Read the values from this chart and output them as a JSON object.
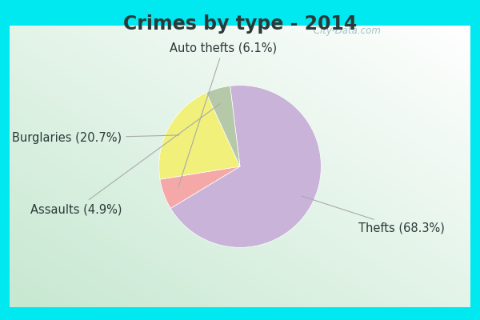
{
  "title": "Crimes by type - 2014",
  "slices": [
    {
      "label": "Thefts (68.3%)",
      "value": 68.3,
      "color": "#c9b3d9"
    },
    {
      "label": "Auto thefts (6.1%)",
      "value": 6.1,
      "color": "#f4a9a8"
    },
    {
      "label": "Burglaries (20.7%)",
      "value": 20.7,
      "color": "#f0f07a"
    },
    {
      "label": "Assaults (4.9%)",
      "value": 4.9,
      "color": "#b5c9a8"
    }
  ],
  "title_fontsize": 17,
  "label_fontsize": 10.5,
  "bg_cyan": "#00e8f0",
  "bg_inner_tl": "#c8e8d0",
  "bg_inner_br": "#e8f0e8",
  "watermark": " City-Data.com",
  "startangle": 97,
  "title_color": "#2a3a3a"
}
